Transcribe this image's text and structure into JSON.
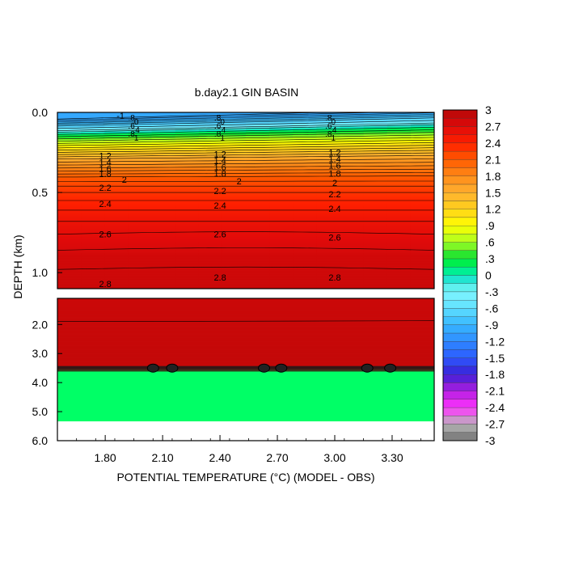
{
  "chart_data": {
    "type": "heatmap",
    "title": "b.day2.1 GIN BASIN",
    "xlabel": "POTENTIAL TEMPERATURE (°C) (MODEL - OBS)",
    "ylabel": "DEPTH (km)",
    "x_ticks": [
      "1.80",
      "2.10",
      "2.40",
      "2.70",
      "3.00",
      "3.30"
    ],
    "x_tick_values": [
      1.8,
      2.1,
      2.4,
      2.7,
      3.0,
      3.3
    ],
    "xlim": [
      1.55,
      3.52
    ],
    "upper_panel": {
      "ylim": [
        0.0,
        1.1
      ],
      "y_ticks": [
        "0.0",
        "0.5",
        "1.0"
      ],
      "y_tick_values": [
        0.0,
        0.5,
        1.0
      ]
    },
    "lower_panel": {
      "ylim": [
        1.1,
        6.0
      ],
      "y_ticks": [
        "2.0",
        "3.0",
        "4.0",
        "5.0",
        "6.0"
      ],
      "y_tick_values": [
        2.0,
        3.0,
        4.0,
        5.0,
        6.0
      ]
    },
    "profile": {
      "depth_km": [
        0.0,
        0.05,
        0.1,
        0.15,
        0.2,
        0.25,
        0.3,
        0.35,
        0.4,
        0.5,
        0.6,
        0.7,
        0.8,
        0.9,
        1.1,
        3.45,
        3.5,
        3.62,
        5.35
      ],
      "value": [
        -1.0,
        -0.6,
        0.2,
        0.7,
        1.1,
        1.4,
        1.7,
        1.9,
        2.1,
        2.3,
        2.45,
        2.6,
        2.7,
        2.8,
        2.85,
        2.9,
        3.0,
        0.15,
        0.15
      ]
    },
    "contour_labels": [
      "-1",
      ".8",
      "0",
      ".6",
      ".4",
      ".8",
      "1",
      "1.2",
      "1.4",
      "1.6",
      "1.8",
      "2",
      "2.2",
      "2.4",
      "2.6",
      "2.8"
    ],
    "inline_labels": [
      {
        "x": 1.8,
        "depth": 0.27,
        "text": "1.2"
      },
      {
        "x": 1.8,
        "depth": 0.31,
        "text": "1.4"
      },
      {
        "x": 1.8,
        "depth": 0.35,
        "text": "1.6"
      },
      {
        "x": 1.8,
        "depth": 0.38,
        "text": "1.8"
      },
      {
        "x": 1.9,
        "depth": 0.42,
        "text": "2"
      },
      {
        "x": 1.8,
        "depth": 0.47,
        "text": "2.2"
      },
      {
        "x": 1.8,
        "depth": 0.57,
        "text": "2.4"
      },
      {
        "x": 1.8,
        "depth": 0.76,
        "text": "2.6"
      },
      {
        "x": 1.8,
        "depth": 1.07,
        "text": "2.8"
      },
      {
        "x": 2.4,
        "depth": 0.26,
        "text": "1.2"
      },
      {
        "x": 2.4,
        "depth": 0.3,
        "text": "1.4"
      },
      {
        "x": 2.4,
        "depth": 0.34,
        "text": "1.6"
      },
      {
        "x": 2.4,
        "depth": 0.38,
        "text": "1.8"
      },
      {
        "x": 2.5,
        "depth": 0.43,
        "text": "2"
      },
      {
        "x": 2.4,
        "depth": 0.49,
        "text": "2.2"
      },
      {
        "x": 2.4,
        "depth": 0.58,
        "text": "2.4"
      },
      {
        "x": 2.4,
        "depth": 0.76,
        "text": "2.6"
      },
      {
        "x": 2.4,
        "depth": 1.03,
        "text": "2.8"
      },
      {
        "x": 3.0,
        "depth": 0.25,
        "text": "1.2"
      },
      {
        "x": 3.0,
        "depth": 0.29,
        "text": "1.4"
      },
      {
        "x": 3.0,
        "depth": 0.33,
        "text": "1.6"
      },
      {
        "x": 3.0,
        "depth": 0.38,
        "text": "1.8"
      },
      {
        "x": 3.0,
        "depth": 0.44,
        "text": "2"
      },
      {
        "x": 3.0,
        "depth": 0.51,
        "text": "2.2"
      },
      {
        "x": 3.0,
        "depth": 0.6,
        "text": "2.4"
      },
      {
        "x": 3.0,
        "depth": 0.78,
        "text": "2.6"
      },
      {
        "x": 3.0,
        "depth": 1.03,
        "text": "2.8"
      },
      {
        "x": 1.88,
        "depth": 0.02,
        "text": "-1"
      }
    ],
    "colorbar": {
      "min": -3,
      "max": 3,
      "labels": [
        "3",
        "2.7",
        "2.4",
        "2.1",
        "1.8",
        "1.5",
        "1.2",
        ".9",
        ".6",
        ".3",
        "0",
        "-.3",
        "-.6",
        "-.9",
        "-1.2",
        "-1.5",
        "-1.8",
        "-2.1",
        "-2.4",
        "-2.7",
        "-3"
      ],
      "values": [
        3,
        2.7,
        2.4,
        2.1,
        1.8,
        1.5,
        1.2,
        0.9,
        0.6,
        0.3,
        0,
        -0.3,
        -0.6,
        -0.9,
        -1.2,
        -1.5,
        -1.8,
        -2.1,
        -2.4,
        -2.7,
        -3
      ]
    }
  }
}
